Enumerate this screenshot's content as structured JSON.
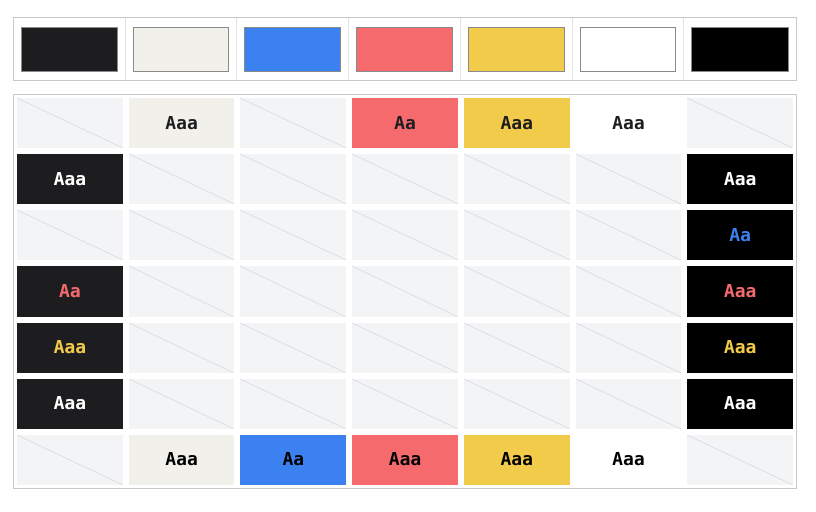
{
  "palette": {
    "colors": {
      "dark": "#1d1d1f",
      "cream": "#f2f0ea",
      "blue": "#3b82f0",
      "red": "#f56b6d",
      "yellow": "#f2cb4b",
      "white": "#ffffff",
      "black": "#000000"
    },
    "order": [
      "dark",
      "cream",
      "blue",
      "red",
      "yellow",
      "white",
      "black"
    ]
  },
  "matrix": {
    "rows": [
      [
        null,
        {
          "bg": "cream",
          "fg": "dark",
          "label": "Aaa"
        },
        null,
        {
          "bg": "red",
          "fg": "dark",
          "label": "Aa"
        },
        {
          "bg": "yellow",
          "fg": "dark",
          "label": "Aaa"
        },
        {
          "bg": "white",
          "fg": "dark",
          "label": "Aaa"
        },
        null
      ],
      [
        {
          "bg": "dark",
          "fg": "white",
          "label": "Aaa"
        },
        null,
        null,
        null,
        null,
        null,
        {
          "bg": "black",
          "fg": "white",
          "label": "Aaa"
        }
      ],
      [
        null,
        null,
        null,
        null,
        null,
        null,
        {
          "bg": "black",
          "fg": "blue",
          "label": "Aa"
        }
      ],
      [
        {
          "bg": "dark",
          "fg": "red",
          "label": "Aa"
        },
        null,
        null,
        null,
        null,
        null,
        {
          "bg": "black",
          "fg": "red",
          "label": "Aaa"
        }
      ],
      [
        {
          "bg": "dark",
          "fg": "yellow",
          "label": "Aaa"
        },
        null,
        null,
        null,
        null,
        null,
        {
          "bg": "black",
          "fg": "yellow",
          "label": "Aaa"
        }
      ],
      [
        {
          "bg": "dark",
          "fg": "white",
          "label": "Aaa"
        },
        null,
        null,
        null,
        null,
        null,
        {
          "bg": "black",
          "fg": "white",
          "label": "Aaa"
        }
      ],
      [
        null,
        {
          "bg": "cream",
          "fg": "black",
          "label": "Aaa"
        },
        {
          "bg": "blue",
          "fg": "black",
          "label": "Aa"
        },
        {
          "bg": "red",
          "fg": "black",
          "label": "Aaa"
        },
        {
          "bg": "yellow",
          "fg": "black",
          "label": "Aaa"
        },
        {
          "bg": "white",
          "fg": "black",
          "label": "Aaa"
        },
        null
      ]
    ]
  }
}
